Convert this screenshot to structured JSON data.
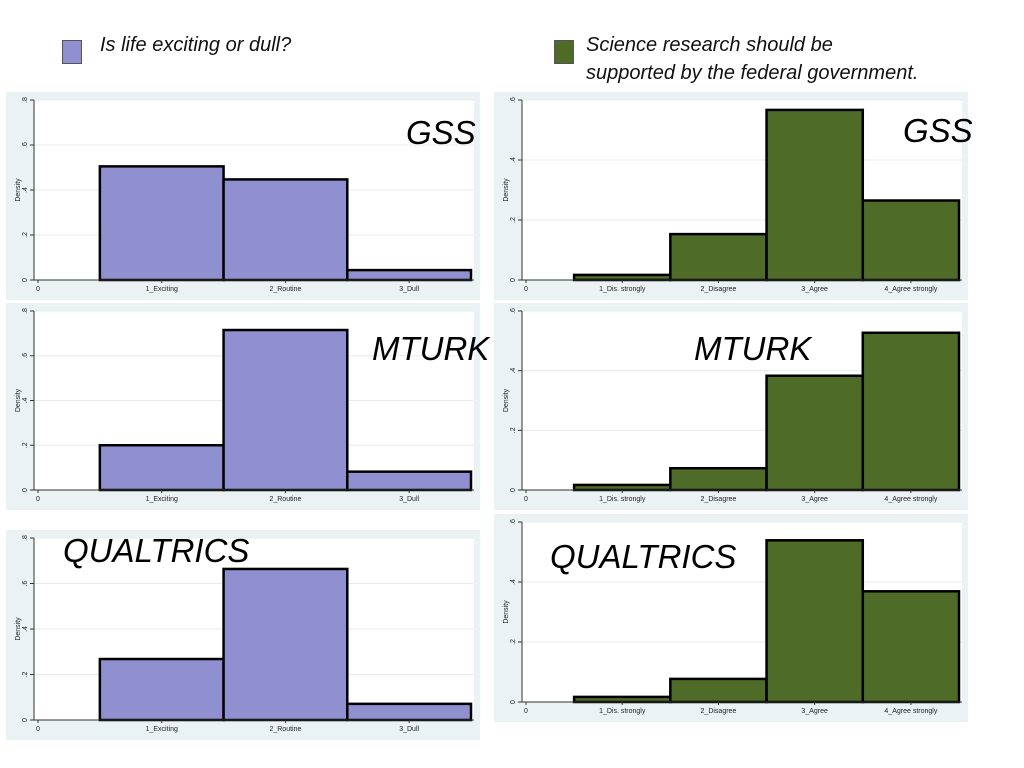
{
  "legend": {
    "left": {
      "label": "Is life exciting or dull?",
      "color": "#9090d0"
    },
    "right": {
      "label_line1": "Science research should be",
      "label_line2": "supported by the federal government.",
      "color": "#4f6b28"
    }
  },
  "sources": {
    "gss": "GSS",
    "mturk": "MTURK",
    "qualtrics": "QUALTRICS"
  },
  "chart_data": [
    {
      "id": "life_gss",
      "type": "bar",
      "source": "GSS",
      "color": "#9090d0",
      "x_ticks": [
        "0",
        "1_Exciting",
        "2_Routine",
        "3_Dull"
      ],
      "categories": [
        "1_Exciting",
        "2_Routine",
        "3_Dull"
      ],
      "values": [
        0.505,
        0.447,
        0.044
      ],
      "ylabel": "Density",
      "ylim": [
        0,
        0.8
      ],
      "yticks": [
        "0",
        ".2",
        ".4",
        ".6",
        ".8"
      ]
    },
    {
      "id": "life_mturk",
      "type": "bar",
      "source": "MTURK",
      "color": "#9090d0",
      "x_ticks": [
        "0",
        "1_Exciting",
        "2_Routine",
        "3_Dull"
      ],
      "categories": [
        "1_Exciting",
        "2_Routine",
        "3_Dull"
      ],
      "values": [
        0.2,
        0.715,
        0.082
      ],
      "ylabel": "Density",
      "ylim": [
        0,
        0.8
      ],
      "yticks": [
        "0",
        ".2",
        ".4",
        ".6",
        ".8"
      ]
    },
    {
      "id": "life_qualtrics",
      "type": "bar",
      "source": "QUALTRICS",
      "color": "#9090d0",
      "x_ticks": [
        "0",
        "1_Exciting",
        "2_Routine",
        "3_Dull"
      ],
      "categories": [
        "1_Exciting",
        "2_Routine",
        "3_Dull"
      ],
      "values": [
        0.268,
        0.664,
        0.071
      ],
      "ylabel": "Density",
      "ylim": [
        0,
        0.8
      ],
      "yticks": [
        "0",
        ".2",
        ".4",
        ".6",
        ".8"
      ]
    },
    {
      "id": "science_gss",
      "type": "bar",
      "source": "GSS",
      "color": "#4f6b28",
      "x_ticks": [
        "0",
        "1_Dis. strongly",
        "2_Disagree",
        "3_Agree",
        "4_Agree strongly"
      ],
      "categories": [
        "1_Dis. strongly",
        "2_Disagree",
        "3_Agree",
        "4_Agree strongly"
      ],
      "values": [
        0.017,
        0.153,
        0.567,
        0.265
      ],
      "ylabel": "Density",
      "ylim": [
        0,
        0.6
      ],
      "yticks": [
        "0",
        ".2",
        ".4",
        ".6"
      ]
    },
    {
      "id": "science_mturk",
      "type": "bar",
      "source": "MTURK",
      "color": "#4f6b28",
      "x_ticks": [
        "0",
        "1_Dis. strongly",
        "2_Disagree",
        "3_Agree",
        "4_Agree strongly"
      ],
      "categories": [
        "1_Dis. strongly",
        "2_Disagree",
        "3_Agree",
        "4_Agree strongly"
      ],
      "values": [
        0.017,
        0.073,
        0.383,
        0.527
      ],
      "ylabel": "Density",
      "ylim": [
        0,
        0.6
      ],
      "yticks": [
        "0",
        ".2",
        ".4",
        ".6"
      ]
    },
    {
      "id": "science_qualtrics",
      "type": "bar",
      "source": "QUALTRICS",
      "color": "#4f6b28",
      "x_ticks": [
        "0",
        "1_Dis. strongly",
        "2_Disagree",
        "3_Agree",
        "4_Agree strongly"
      ],
      "categories": [
        "1_Dis. strongly",
        "2_Disagree",
        "3_Agree",
        "4_Agree strongly"
      ],
      "values": [
        0.017,
        0.077,
        0.539,
        0.369
      ],
      "ylabel": "Density",
      "ylim": [
        0,
        0.6
      ],
      "yticks": [
        "0",
        ".2",
        ".4",
        ".6"
      ]
    }
  ]
}
